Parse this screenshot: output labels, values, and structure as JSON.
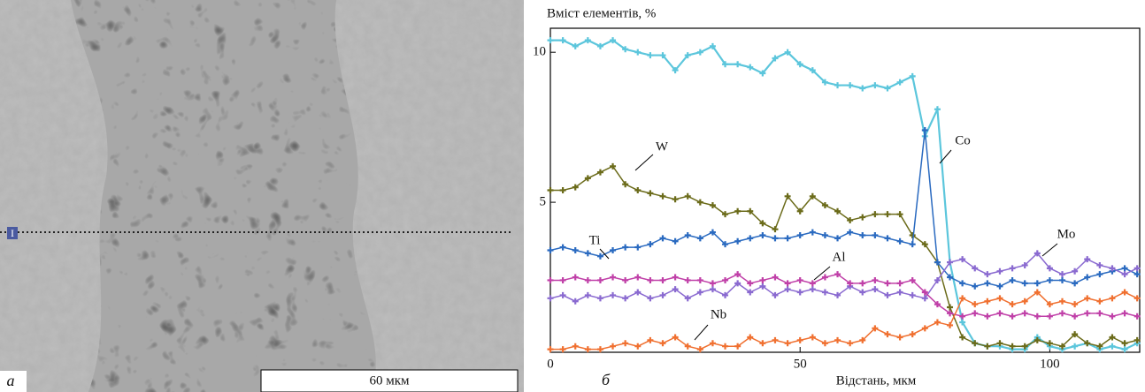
{
  "figure": {
    "panel_a": {
      "label": "а",
      "scale_bar": "60 мкм",
      "marker": "І"
    },
    "panel_b_label": "б"
  },
  "chart_data": {
    "type": "line",
    "ylabel": "Вміст елементів, %",
    "xlabel": "Відстань, мкм",
    "x": [
      0,
      2.5,
      5,
      7.5,
      10,
      12.5,
      15,
      17.5,
      20,
      22.5,
      25,
      27.5,
      30,
      32.5,
      35,
      37.5,
      40,
      42.5,
      45,
      47.5,
      50,
      52.5,
      55,
      57.5,
      60,
      62.5,
      65,
      67.5,
      70,
      72.5,
      75,
      77.5,
      80,
      82.5,
      85,
      87.5,
      90,
      92.5,
      95,
      97.5,
      100,
      102.5,
      105,
      107.5,
      110,
      112.5,
      115,
      117.5
    ],
    "xlim": [
      0,
      118
    ],
    "ylim": [
      0,
      10.8
    ],
    "xticks": [
      0,
      50,
      100
    ],
    "yticks": [
      5,
      10
    ],
    "series": [
      {
        "name": "Co",
        "color": "#5cc6dc",
        "values": [
          10.4,
          10.4,
          10.2,
          10.4,
          10.2,
          10.4,
          10.1,
          10.0,
          9.9,
          9.9,
          9.4,
          9.9,
          10.0,
          10.2,
          9.6,
          9.6,
          9.5,
          9.3,
          9.8,
          10.0,
          9.6,
          9.4,
          9.0,
          8.9,
          8.9,
          8.8,
          8.9,
          8.8,
          9.0,
          9.2,
          7.2,
          8.1,
          3.0,
          1.0,
          0.3,
          0.2,
          0.2,
          0.1,
          0.1,
          0.5,
          0.2,
          0.1,
          0.2,
          0.3,
          0.1,
          0.2,
          0.1,
          0.3
        ]
      },
      {
        "name": "W",
        "color": "#6b6b1a",
        "values": [
          5.4,
          5.4,
          5.5,
          5.8,
          6.0,
          6.2,
          5.6,
          5.4,
          5.3,
          5.2,
          5.1,
          5.2,
          5.0,
          4.9,
          4.6,
          4.7,
          4.7,
          4.3,
          4.1,
          5.2,
          4.7,
          5.2,
          4.9,
          4.7,
          4.4,
          4.5,
          4.6,
          4.6,
          4.6,
          3.9,
          3.6,
          3.0,
          1.5,
          0.5,
          0.3,
          0.2,
          0.3,
          0.2,
          0.2,
          0.4,
          0.3,
          0.2,
          0.6,
          0.3,
          0.2,
          0.5,
          0.3,
          0.4
        ]
      },
      {
        "name": "Ti",
        "color": "#2a6ac0",
        "values": [
          3.4,
          3.5,
          3.4,
          3.3,
          3.2,
          3.4,
          3.5,
          3.5,
          3.6,
          3.8,
          3.7,
          3.9,
          3.8,
          4.0,
          3.6,
          3.7,
          3.8,
          3.9,
          3.8,
          3.8,
          3.9,
          4.0,
          3.9,
          3.8,
          4.0,
          3.9,
          3.9,
          3.8,
          3.7,
          3.6,
          7.4,
          3.0,
          2.5,
          2.3,
          2.2,
          2.3,
          2.2,
          2.4,
          2.3,
          2.3,
          2.4,
          2.4,
          2.3,
          2.5,
          2.6,
          2.7,
          2.8,
          2.6
        ]
      },
      {
        "name": "Mo",
        "color": "#8a6ad0",
        "values": [
          1.8,
          1.9,
          1.7,
          1.9,
          1.8,
          1.9,
          1.8,
          2.0,
          1.8,
          1.9,
          2.1,
          1.8,
          2.0,
          2.1,
          1.9,
          2.3,
          2.0,
          2.2,
          1.9,
          2.1,
          2.0,
          2.1,
          2.0,
          1.9,
          2.2,
          2.0,
          2.1,
          1.9,
          2.0,
          1.9,
          1.8,
          2.4,
          3.0,
          3.1,
          2.8,
          2.6,
          2.7,
          2.8,
          2.9,
          3.3,
          2.8,
          2.6,
          2.7,
          3.1,
          2.9,
          2.8,
          2.6,
          2.8
        ]
      },
      {
        "name": "Al",
        "color": "#c040a8",
        "values": [
          2.4,
          2.4,
          2.5,
          2.4,
          2.4,
          2.5,
          2.4,
          2.5,
          2.4,
          2.4,
          2.5,
          2.4,
          2.4,
          2.3,
          2.4,
          2.6,
          2.3,
          2.4,
          2.5,
          2.3,
          2.4,
          2.3,
          2.5,
          2.6,
          2.3,
          2.3,
          2.4,
          2.3,
          2.3,
          2.4,
          2.0,
          1.6,
          1.3,
          1.2,
          1.3,
          1.2,
          1.3,
          1.2,
          1.3,
          1.2,
          1.2,
          1.3,
          1.2,
          1.3,
          1.3,
          1.2,
          1.3,
          1.2
        ]
      },
      {
        "name": "Nb",
        "color": "#f07030",
        "values": [
          0.1,
          0.1,
          0.2,
          0.1,
          0.1,
          0.2,
          0.3,
          0.2,
          0.4,
          0.3,
          0.5,
          0.2,
          0.1,
          0.3,
          0.2,
          0.2,
          0.5,
          0.3,
          0.4,
          0.3,
          0.4,
          0.5,
          0.3,
          0.4,
          0.3,
          0.4,
          0.8,
          0.6,
          0.5,
          0.6,
          0.8,
          1.0,
          0.9,
          1.8,
          1.6,
          1.7,
          1.8,
          1.6,
          1.7,
          2.0,
          1.6,
          1.7,
          1.6,
          1.8,
          1.7,
          1.8,
          2.0,
          1.8
        ]
      }
    ]
  }
}
